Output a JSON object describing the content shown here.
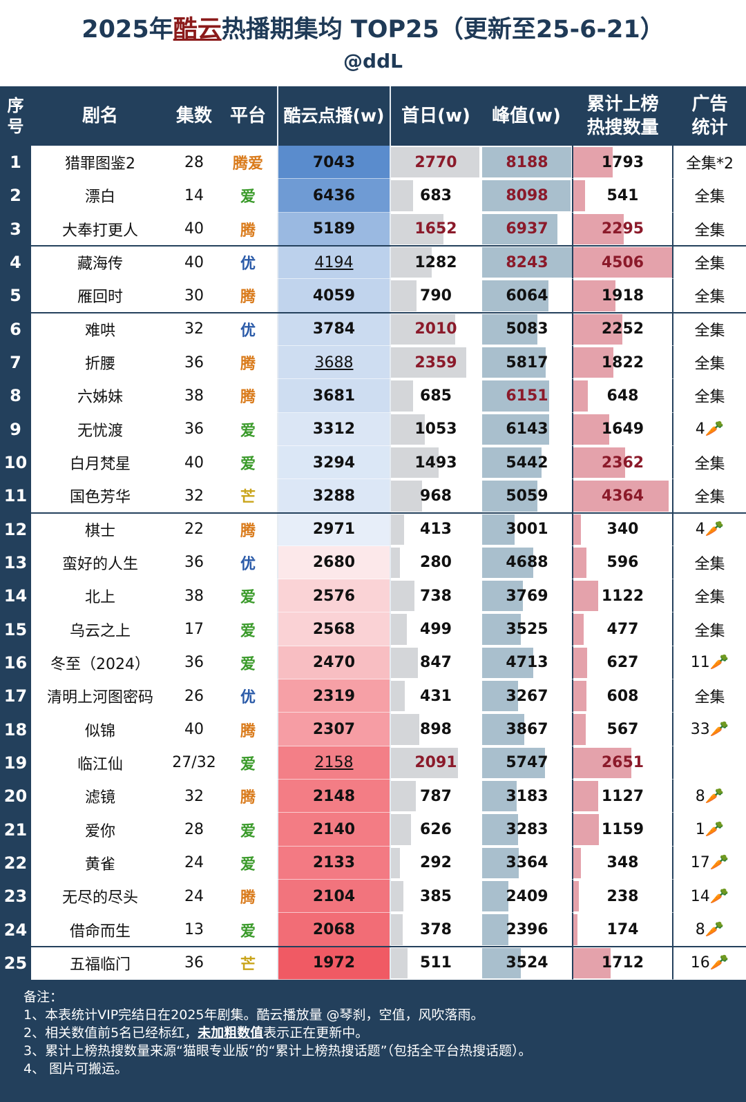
{
  "title": {
    "prefix": "2025年",
    "highlight": "酷云",
    "suffix": "热播期集均 TOP25（更新至25-6-21）",
    "author": "@ddL"
  },
  "colors": {
    "header_bg": "#23405c",
    "red_text": "#8b1a2a",
    "platform_tengxun": "#d97a1a",
    "platform_aiqiyi": "#3a9a2a",
    "platform_youku": "#2a5aa8",
    "platform_mangguo": "#c9a41a"
  },
  "headers": {
    "rank": "序号",
    "name": "剧名",
    "episodes": "集数",
    "platform": "平台",
    "kuyun": "酷云点播(w)",
    "first_day": "首日(w)",
    "peak": "峰值(w)",
    "hotsearch": "累计上榜热搜数量",
    "ads": "广告统计"
  },
  "chart_data": {
    "type": "table",
    "title": "2025年酷云热播期集均 TOP25（更新至25-6-21）",
    "columns": [
      "序号",
      "剧名",
      "集数",
      "平台",
      "酷云点播(w)",
      "首日(w)",
      "峰值(w)",
      "累计上榜热搜数量",
      "广告统计"
    ],
    "rows": [
      {
        "rank": "1",
        "name": "猎罪图鉴2",
        "episodes": "28",
        "platform": "腾爱",
        "kuyun": 7043,
        "kuyun_text": "7043",
        "first": 2770,
        "first_text": "2770",
        "peak": 8188,
        "peak_text": "8188",
        "hot": 1793,
        "hot_text": "1793",
        "ads": "全集*2",
        "first_red": true,
        "peak_red": true,
        "hot_red": false,
        "kuyun_u": false
      },
      {
        "rank": "2",
        "name": "漂白",
        "episodes": "14",
        "platform": "爱",
        "kuyun": 6436,
        "kuyun_text": "6436",
        "first": 683,
        "first_text": "683",
        "peak": 8098,
        "peak_text": "8098",
        "hot": 541,
        "hot_text": "541",
        "ads": "全集",
        "first_red": false,
        "peak_red": true,
        "hot_red": false,
        "kuyun_u": false
      },
      {
        "rank": "3",
        "name": "大奉打更人",
        "episodes": "40",
        "platform": "腾",
        "kuyun": 5189,
        "kuyun_text": "5189",
        "first": 1652,
        "first_text": "1652",
        "peak": 6937,
        "peak_text": "6937",
        "hot": 2295,
        "hot_text": "2295",
        "ads": "全集",
        "first_red": true,
        "peak_red": true,
        "hot_red": true,
        "kuyun_u": false
      },
      {
        "rank": "4",
        "name": "藏海传",
        "episodes": "40",
        "platform": "优",
        "kuyun": 4194,
        "kuyun_text": "4194",
        "first": 1282,
        "first_text": "1282",
        "peak": 8243,
        "peak_text": "8243",
        "hot": 4506,
        "hot_text": "4506",
        "ads": "全集",
        "first_red": false,
        "peak_red": true,
        "hot_red": true,
        "kuyun_u": true
      },
      {
        "rank": "5",
        "name": "雁回时",
        "episodes": "30",
        "platform": "腾",
        "kuyun": 4059,
        "kuyun_text": "4059",
        "first": 790,
        "first_text": "790",
        "peak": 6064,
        "peak_text": "6064",
        "hot": 1918,
        "hot_text": "1918",
        "ads": "全集",
        "first_red": false,
        "peak_red": false,
        "hot_red": false,
        "kuyun_u": false
      },
      {
        "rank": "6",
        "name": "难哄",
        "episodes": "32",
        "platform": "优",
        "kuyun": 3784,
        "kuyun_text": "3784",
        "first": 2010,
        "first_text": "2010",
        "peak": 5083,
        "peak_text": "5083",
        "hot": 2252,
        "hot_text": "2252",
        "ads": "全集",
        "first_red": true,
        "peak_red": false,
        "hot_red": false,
        "kuyun_u": false
      },
      {
        "rank": "7",
        "name": "折腰",
        "episodes": "36",
        "platform": "腾",
        "kuyun": 3688,
        "kuyun_text": "3688",
        "first": 2359,
        "first_text": "2359",
        "peak": 5817,
        "peak_text": "5817",
        "hot": 1822,
        "hot_text": "1822",
        "ads": "全集",
        "first_red": true,
        "peak_red": false,
        "hot_red": false,
        "kuyun_u": true
      },
      {
        "rank": "8",
        "name": "六姊妹",
        "episodes": "38",
        "platform": "腾",
        "kuyun": 3681,
        "kuyun_text": "3681",
        "first": 685,
        "first_text": "685",
        "peak": 6151,
        "peak_text": "6151",
        "hot": 648,
        "hot_text": "648",
        "ads": "全集",
        "first_red": false,
        "peak_red": true,
        "hot_red": false,
        "kuyun_u": false
      },
      {
        "rank": "9",
        "name": "无忧渡",
        "episodes": "36",
        "platform": "爱",
        "kuyun": 3312,
        "kuyun_text": "3312",
        "first": 1053,
        "first_text": "1053",
        "peak": 6143,
        "peak_text": "6143",
        "hot": 1649,
        "hot_text": "1649",
        "ads": "4🥕",
        "first_red": false,
        "peak_red": false,
        "hot_red": false,
        "kuyun_u": false
      },
      {
        "rank": "10",
        "name": "白月梵星",
        "episodes": "40",
        "platform": "爱",
        "kuyun": 3294,
        "kuyun_text": "3294",
        "first": 1493,
        "first_text": "1493",
        "peak": 5442,
        "peak_text": "5442",
        "hot": 2362,
        "hot_text": "2362",
        "ads": "全集",
        "first_red": false,
        "peak_red": false,
        "hot_red": true,
        "kuyun_u": false
      },
      {
        "rank": "11",
        "name": "国色芳华",
        "episodes": "32",
        "platform": "芒",
        "kuyun": 3288,
        "kuyun_text": "3288",
        "first": 968,
        "first_text": "968",
        "peak": 5059,
        "peak_text": "5059",
        "hot": 4364,
        "hot_text": "4364",
        "ads": "全集",
        "first_red": false,
        "peak_red": false,
        "hot_red": true,
        "kuyun_u": false
      },
      {
        "rank": "12",
        "name": "棋士",
        "episodes": "22",
        "platform": "腾",
        "kuyun": 2971,
        "kuyun_text": "2971",
        "first": 413,
        "first_text": "413",
        "peak": 3001,
        "peak_text": "3001",
        "hot": 340,
        "hot_text": "340",
        "ads": "4🥕",
        "first_red": false,
        "peak_red": false,
        "hot_red": false,
        "kuyun_u": false
      },
      {
        "rank": "13",
        "name": "蛮好的人生",
        "episodes": "36",
        "platform": "优",
        "kuyun": 2680,
        "kuyun_text": "2680",
        "first": 280,
        "first_text": "280",
        "peak": 4688,
        "peak_text": "4688",
        "hot": 596,
        "hot_text": "596",
        "ads": "全集",
        "first_red": false,
        "peak_red": false,
        "hot_red": false,
        "kuyun_u": false
      },
      {
        "rank": "14",
        "name": "北上",
        "episodes": "38",
        "platform": "爱",
        "kuyun": 2576,
        "kuyun_text": "2576",
        "first": 738,
        "first_text": "738",
        "peak": 3769,
        "peak_text": "3769",
        "hot": 1122,
        "hot_text": "1122",
        "ads": "全集",
        "first_red": false,
        "peak_red": false,
        "hot_red": false,
        "kuyun_u": false
      },
      {
        "rank": "15",
        "name": "乌云之上",
        "episodes": "17",
        "platform": "爱",
        "kuyun": 2568,
        "kuyun_text": "2568",
        "first": 499,
        "first_text": "499",
        "peak": 3525,
        "peak_text": "3525",
        "hot": 477,
        "hot_text": "477",
        "ads": "全集",
        "first_red": false,
        "peak_red": false,
        "hot_red": false,
        "kuyun_u": false
      },
      {
        "rank": "16",
        "name": "冬至（2024）",
        "episodes": "36",
        "platform": "爱",
        "kuyun": 2470,
        "kuyun_text": "2470",
        "first": 847,
        "first_text": "847",
        "peak": 4713,
        "peak_text": "4713",
        "hot": 627,
        "hot_text": "627",
        "ads": "11🥕",
        "first_red": false,
        "peak_red": false,
        "hot_red": false,
        "kuyun_u": false
      },
      {
        "rank": "17",
        "name": "清明上河图密码",
        "episodes": "26",
        "platform": "优",
        "kuyun": 2319,
        "kuyun_text": "2319",
        "first": 431,
        "first_text": "431",
        "peak": 3267,
        "peak_text": "3267",
        "hot": 608,
        "hot_text": "608",
        "ads": "全集",
        "first_red": false,
        "peak_red": false,
        "hot_red": false,
        "kuyun_u": false
      },
      {
        "rank": "18",
        "name": "似锦",
        "episodes": "40",
        "platform": "腾",
        "kuyun": 2307,
        "kuyun_text": "2307",
        "first": 898,
        "first_text": "898",
        "peak": 3867,
        "peak_text": "3867",
        "hot": 567,
        "hot_text": "567",
        "ads": "33🥕",
        "first_red": false,
        "peak_red": false,
        "hot_red": false,
        "kuyun_u": false
      },
      {
        "rank": "19",
        "name": "临江仙",
        "episodes": "27/32",
        "platform": "爱",
        "kuyun": 2158,
        "kuyun_text": "2158",
        "first": 2091,
        "first_text": "2091",
        "peak": 5747,
        "peak_text": "5747",
        "hot": 2651,
        "hot_text": "2651",
        "ads": "",
        "first_red": true,
        "peak_red": false,
        "hot_red": true,
        "kuyun_u": true
      },
      {
        "rank": "20",
        "name": "滤镜",
        "episodes": "32",
        "platform": "腾",
        "kuyun": 2148,
        "kuyun_text": "2148",
        "first": 787,
        "first_text": "787",
        "peak": 3183,
        "peak_text": "3183",
        "hot": 1127,
        "hot_text": "1127",
        "ads": "8🥕",
        "first_red": false,
        "peak_red": false,
        "hot_red": false,
        "kuyun_u": false
      },
      {
        "rank": "21",
        "name": "爱你",
        "episodes": "28",
        "platform": "爱",
        "kuyun": 2140,
        "kuyun_text": "2140",
        "first": 626,
        "first_text": "626",
        "peak": 3283,
        "peak_text": "3283",
        "hot": 1159,
        "hot_text": "1159",
        "ads": "1🥕",
        "first_red": false,
        "peak_red": false,
        "hot_red": false,
        "kuyun_u": false
      },
      {
        "rank": "22",
        "name": "黄雀",
        "episodes": "24",
        "platform": "爱",
        "kuyun": 2133,
        "kuyun_text": "2133",
        "first": 292,
        "first_text": "292",
        "peak": 3364,
        "peak_text": "3364",
        "hot": 348,
        "hot_text": "348",
        "ads": "17🥕",
        "first_red": false,
        "peak_red": false,
        "hot_red": false,
        "kuyun_u": false
      },
      {
        "rank": "23",
        "name": "无尽的尽头",
        "episodes": "24",
        "platform": "腾",
        "kuyun": 2104,
        "kuyun_text": "2104",
        "first": 385,
        "first_text": "385",
        "peak": 2409,
        "peak_text": "2409",
        "hot": 238,
        "hot_text": "238",
        "ads": "14🥕",
        "first_red": false,
        "peak_red": false,
        "hot_red": false,
        "kuyun_u": false
      },
      {
        "rank": "24",
        "name": "借命而生",
        "episodes": "13",
        "platform": "爱",
        "kuyun": 2068,
        "kuyun_text": "2068",
        "first": 378,
        "first_text": "378",
        "peak": 2396,
        "peak_text": "2396",
        "hot": 174,
        "hot_text": "174",
        "ads": "8🥕",
        "first_red": false,
        "peak_red": false,
        "hot_red": false,
        "kuyun_u": false
      },
      {
        "rank": "25",
        "name": "五福临门",
        "episodes": "36",
        "platform": "芒",
        "kuyun": 1972,
        "kuyun_text": "1972",
        "first": 511,
        "first_text": "511",
        "peak": 3524,
        "peak_text": "3524",
        "hot": 1712,
        "hot_text": "1712",
        "ads": "16🥕",
        "first_red": false,
        "peak_red": false,
        "hot_red": false,
        "kuyun_u": false
      }
    ]
  },
  "notes": {
    "heading": "备注：",
    "n1": "1、本表统计VIP完结日在2025年剧集。酷云播放量 @琴刹，空值，风吹落雨。",
    "n2_pre": "2、相关数值前5名已经标红，",
    "n2_bold": "未加粗数值",
    "n2_post": "表示正在更新中。",
    "n3": "3、累计上榜热搜数量来源“猫眼专业版”的“累计上榜热搜话题”（包括全平台热搜话题）。",
    "n4": "4、 图片可搬运。"
  }
}
